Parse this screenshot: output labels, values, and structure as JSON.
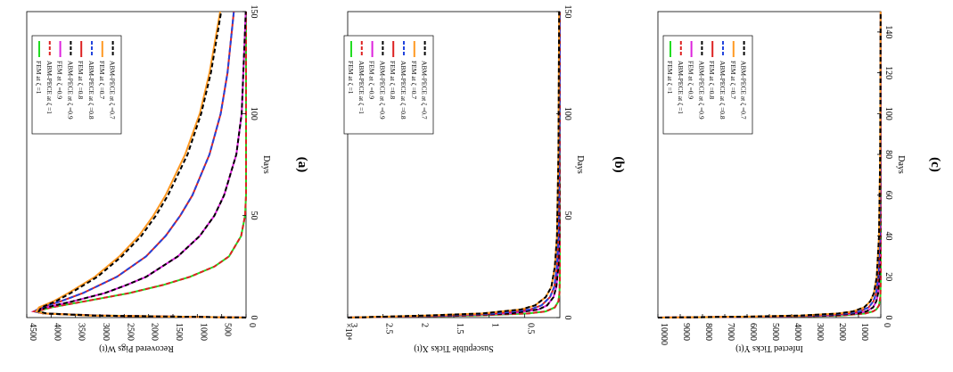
{
  "chart_data": [
    {
      "type": "line",
      "caption": "(a)",
      "xlabel": "Days",
      "ylabel": "Recovered Pigs W(t)",
      "xlim": [
        0,
        150
      ],
      "ylim": [
        0,
        4500
      ],
      "xticks": [
        0,
        50,
        100,
        150
      ],
      "yticks": [
        0,
        500,
        1000,
        1500,
        2000,
        2500,
        3000,
        3500,
        4000,
        4500
      ],
      "y_exponent": "",
      "series": [
        {
          "name": "FEM at ζ =1",
          "color": "#22dd22",
          "dash": "solid",
          "x": [
            0,
            1,
            2,
            3,
            5,
            8,
            12,
            16,
            20,
            25,
            30,
            40,
            50,
            60,
            80,
            100,
            150
          ],
          "y": [
            0,
            3000,
            4100,
            4300,
            4000,
            3300,
            2400,
            1700,
            1150,
            650,
            350,
            100,
            20,
            0,
            0,
            0,
            0
          ]
        },
        {
          "name": "ABM-PECE at ζ =1",
          "color": "#dd2222",
          "dash": "dashed",
          "x": [
            0,
            1,
            2,
            3,
            5,
            8,
            12,
            16,
            20,
            25,
            30,
            40,
            50,
            60,
            80,
            100,
            150
          ],
          "y": [
            0,
            3000,
            4100,
            4300,
            4000,
            3300,
            2400,
            1700,
            1150,
            650,
            350,
            100,
            20,
            0,
            0,
            0,
            0
          ]
        },
        {
          "name": "FEM at ζ =0.9",
          "color": "#dd22dd",
          "dash": "solid",
          "x": [
            0,
            1,
            2,
            3,
            5,
            8,
            12,
            16,
            20,
            30,
            40,
            50,
            60,
            80,
            100,
            150
          ],
          "y": [
            0,
            3100,
            4150,
            4350,
            4100,
            3550,
            2900,
            2450,
            2050,
            1400,
            950,
            650,
            450,
            200,
            90,
            5
          ]
        },
        {
          "name": "ABM-PECE at ζ =0.9",
          "color": "#000000",
          "dash": "dashed",
          "x": [
            0,
            1,
            2,
            3,
            5,
            8,
            12,
            16,
            20,
            30,
            40,
            50,
            60,
            80,
            100,
            150
          ],
          "y": [
            0,
            3100,
            4150,
            4350,
            4100,
            3550,
            2900,
            2450,
            2050,
            1400,
            950,
            650,
            450,
            200,
            90,
            5
          ]
        },
        {
          "name": "FEM at ζ =0.8",
          "color": "#dd2222",
          "dash": "solid",
          "x": [
            0,
            1,
            2,
            3,
            5,
            8,
            12,
            20,
            30,
            40,
            50,
            60,
            80,
            100,
            120,
            150
          ],
          "y": [
            0,
            3150,
            4150,
            4350,
            4200,
            3800,
            3350,
            2650,
            2050,
            1650,
            1350,
            1100,
            750,
            520,
            380,
            250
          ]
        },
        {
          "name": "ABM-PECE at ζ =0.8",
          "color": "#2244dd",
          "dash": "dashed",
          "x": [
            0,
            1,
            2,
            3,
            5,
            8,
            12,
            20,
            30,
            40,
            50,
            60,
            80,
            100,
            120,
            150
          ],
          "y": [
            0,
            3150,
            4150,
            4350,
            4200,
            3800,
            3350,
            2650,
            2050,
            1650,
            1350,
            1100,
            750,
            520,
            380,
            250
          ]
        },
        {
          "name": "FEM at ζ =0.7",
          "color": "#ff9922",
          "dash": "solid",
          "x": [
            0,
            1,
            2,
            3,
            5,
            8,
            12,
            20,
            30,
            40,
            50,
            60,
            80,
            100,
            120,
            150
          ],
          "y": [
            0,
            3200,
            4150,
            4300,
            4250,
            3950,
            3650,
            3100,
            2600,
            2200,
            1900,
            1650,
            1250,
            950,
            750,
            530
          ]
        },
        {
          "name": "ABM-PECE at ζ =0.7",
          "color": "#000000",
          "dash": "dashed",
          "x": [
            0,
            1,
            2,
            3,
            5,
            8,
            12,
            20,
            30,
            40,
            50,
            60,
            80,
            100,
            120,
            150
          ],
          "y": [
            0,
            3150,
            4100,
            4250,
            4200,
            3900,
            3600,
            3050,
            2550,
            2150,
            1850,
            1600,
            1200,
            920,
            720,
            510
          ]
        }
      ]
    },
    {
      "type": "line",
      "caption": "(b)",
      "xlabel": "Days",
      "ylabel": "Susceptible Ticks X(t)",
      "xlim": [
        0,
        150
      ],
      "ylim": [
        0,
        3
      ],
      "xticks": [
        0,
        50,
        100,
        150
      ],
      "yticks": [
        0.5,
        1,
        1.5,
        2,
        2.5,
        3
      ],
      "y_exponent": "×10⁴",
      "series": [
        {
          "name": "FEM at ζ =1",
          "color": "#22dd22",
          "dash": "solid",
          "x": [
            0,
            1,
            2,
            3,
            5,
            8,
            12,
            20,
            150
          ],
          "y": [
            3,
            1.2,
            0.45,
            0.2,
            0.07,
            0.02,
            0.005,
            0,
            0
          ]
        },
        {
          "name": "ABM-PECE at ζ =1",
          "color": "#dd2222",
          "dash": "dashed",
          "x": [
            0,
            1,
            2,
            3,
            5,
            8,
            12,
            20,
            150
          ],
          "y": [
            3,
            1.2,
            0.45,
            0.2,
            0.07,
            0.02,
            0.005,
            0,
            0
          ]
        },
        {
          "name": "FEM at ζ =0.9",
          "color": "#dd22dd",
          "dash": "solid",
          "x": [
            0,
            1,
            2,
            4,
            6,
            10,
            15,
            25,
            40,
            150
          ],
          "y": [
            3,
            1.5,
            0.7,
            0.3,
            0.18,
            0.09,
            0.05,
            0.02,
            0.008,
            0
          ]
        },
        {
          "name": "ABM-PECE at ζ =0.9",
          "color": "#000000",
          "dash": "dashed",
          "x": [
            0,
            1,
            2,
            4,
            6,
            10,
            15,
            25,
            40,
            150
          ],
          "y": [
            3,
            1.5,
            0.7,
            0.3,
            0.18,
            0.09,
            0.05,
            0.02,
            0.008,
            0
          ]
        },
        {
          "name": "FEM at ζ =0.8",
          "color": "#dd2222",
          "dash": "solid",
          "x": [
            0,
            1,
            2,
            4,
            6,
            10,
            15,
            25,
            40,
            80,
            150
          ],
          "y": [
            3,
            1.7,
            0.9,
            0.42,
            0.26,
            0.14,
            0.08,
            0.04,
            0.02,
            0.008,
            0.003
          ]
        },
        {
          "name": "ABM-PECE at ζ =0.8",
          "color": "#2244dd",
          "dash": "dashed",
          "x": [
            0,
            1,
            2,
            4,
            6,
            10,
            15,
            25,
            40,
            80,
            150
          ],
          "y": [
            3,
            1.7,
            0.9,
            0.42,
            0.26,
            0.14,
            0.08,
            0.04,
            0.02,
            0.008,
            0.003
          ]
        },
        {
          "name": "FEM at ζ =0.7",
          "color": "#ff9922",
          "dash": "solid",
          "x": [
            0,
            1,
            2,
            4,
            6,
            10,
            15,
            25,
            40,
            80,
            150
          ],
          "y": [
            3,
            1.9,
            1.1,
            0.55,
            0.35,
            0.2,
            0.12,
            0.07,
            0.04,
            0.02,
            0.01
          ]
        },
        {
          "name": "ABM-PECE at ζ =0.7",
          "color": "#000000",
          "dash": "dashed",
          "x": [
            0,
            1,
            2,
            4,
            6,
            10,
            15,
            25,
            40,
            80,
            150
          ],
          "y": [
            3,
            1.9,
            1.1,
            0.55,
            0.35,
            0.2,
            0.12,
            0.07,
            0.04,
            0.02,
            0.01
          ]
        }
      ]
    },
    {
      "type": "line",
      "caption": "(c)",
      "xlabel": "Days",
      "ylabel": "Infected Ticks Y(t)",
      "xlim": [
        0,
        150
      ],
      "ylim": [
        0,
        10000
      ],
      "xticks": [
        0,
        20,
        40,
        60,
        80,
        100,
        120,
        140
      ],
      "yticks": [
        0,
        1000,
        2000,
        3000,
        4000,
        5000,
        6000,
        7000,
        8000,
        9000,
        10000
      ],
      "y_exponent": "",
      "series": [
        {
          "name": "FEM at ζ =1",
          "color": "#22dd22",
          "dash": "solid",
          "x": [
            0,
            0.5,
            1,
            2,
            3,
            4,
            6,
            10,
            20,
            150
          ],
          "y": [
            10000,
            4000,
            1800,
            700,
            350,
            200,
            80,
            20,
            0,
            0
          ]
        },
        {
          "name": "ABM-PECE at ζ =1",
          "color": "#dd2222",
          "dash": "dashed",
          "x": [
            0,
            0.5,
            1,
            2,
            3,
            4,
            6,
            10,
            20,
            150
          ],
          "y": [
            10000,
            4000,
            1800,
            700,
            350,
            200,
            80,
            20,
            0,
            0
          ]
        },
        {
          "name": "FEM at ζ =0.9",
          "color": "#dd22dd",
          "dash": "solid",
          "x": [
            0,
            0.5,
            1,
            2,
            3,
            5,
            8,
            12,
            20,
            40,
            150
          ],
          "y": [
            10000,
            4800,
            2400,
            1100,
            650,
            350,
            200,
            120,
            60,
            20,
            0
          ]
        },
        {
          "name": "ABM-PECE at ζ =0.9",
          "color": "#000000",
          "dash": "dashed",
          "x": [
            0,
            0.5,
            1,
            2,
            3,
            5,
            8,
            12,
            20,
            40,
            150
          ],
          "y": [
            10000,
            4800,
            2400,
            1100,
            650,
            350,
            200,
            120,
            60,
            20,
            0
          ]
        },
        {
          "name": "FEM at ζ =0.8",
          "color": "#dd2222",
          "dash": "solid",
          "x": [
            0,
            0.5,
            1,
            2,
            3,
            5,
            8,
            12,
            20,
            40,
            80,
            150
          ],
          "y": [
            10000,
            5400,
            3000,
            1500,
            950,
            550,
            330,
            210,
            120,
            50,
            15,
            5
          ]
        },
        {
          "name": "ABM-PECE at ζ =0.8",
          "color": "#2244dd",
          "dash": "dashed",
          "x": [
            0,
            0.5,
            1,
            2,
            3,
            5,
            8,
            12,
            20,
            40,
            80,
            150
          ],
          "y": [
            10000,
            5400,
            3000,
            1500,
            950,
            550,
            330,
            210,
            120,
            50,
            15,
            5
          ]
        },
        {
          "name": "FEM at ζ =0.7",
          "color": "#ff9922",
          "dash": "solid",
          "x": [
            0,
            0.5,
            1,
            2,
            3,
            5,
            8,
            12,
            20,
            40,
            80,
            150
          ],
          "y": [
            10000,
            6000,
            3600,
            1900,
            1250,
            750,
            470,
            310,
            180,
            80,
            30,
            10
          ]
        },
        {
          "name": "ABM-PECE at ζ =0.7",
          "color": "#000000",
          "dash": "dashed",
          "x": [
            0,
            0.5,
            1,
            2,
            3,
            5,
            8,
            12,
            20,
            40,
            80,
            150
          ],
          "y": [
            10000,
            6000,
            3600,
            1900,
            1250,
            750,
            470,
            310,
            180,
            80,
            30,
            10
          ]
        }
      ]
    }
  ]
}
